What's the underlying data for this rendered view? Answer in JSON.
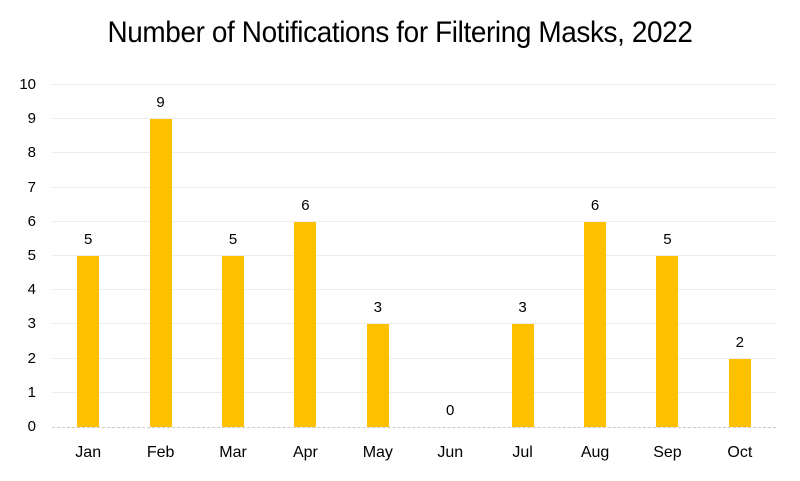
{
  "chart_data": {
    "type": "bar",
    "title": "Number of Notifications for Filtering Masks, 2022",
    "categories": [
      "Jan",
      "Feb",
      "Mar",
      "Apr",
      "May",
      "Jun",
      "Jul",
      "Aug",
      "Sep",
      "Oct"
    ],
    "values": [
      5,
      9,
      5,
      6,
      3,
      0,
      3,
      6,
      5,
      2
    ],
    "data_labels": [
      "5",
      "9",
      "5",
      "6",
      "3",
      "0",
      "3",
      "6",
      "5",
      "2"
    ],
    "y_tick_labels": [
      "0",
      "1",
      "2",
      "3",
      "4",
      "5",
      "6",
      "7",
      "8",
      "9",
      "10"
    ],
    "xlabel": "",
    "ylabel": "",
    "ylim": [
      0,
      10
    ],
    "ytick_step": 1,
    "grid": true,
    "legend": false,
    "show_data_labels": true,
    "colors": {
      "bar": "#FFC000",
      "gridline": "#ECECEC",
      "axis_line": "#C9C9C9",
      "text": "#000000",
      "background": "#FFFFFF"
    }
  }
}
